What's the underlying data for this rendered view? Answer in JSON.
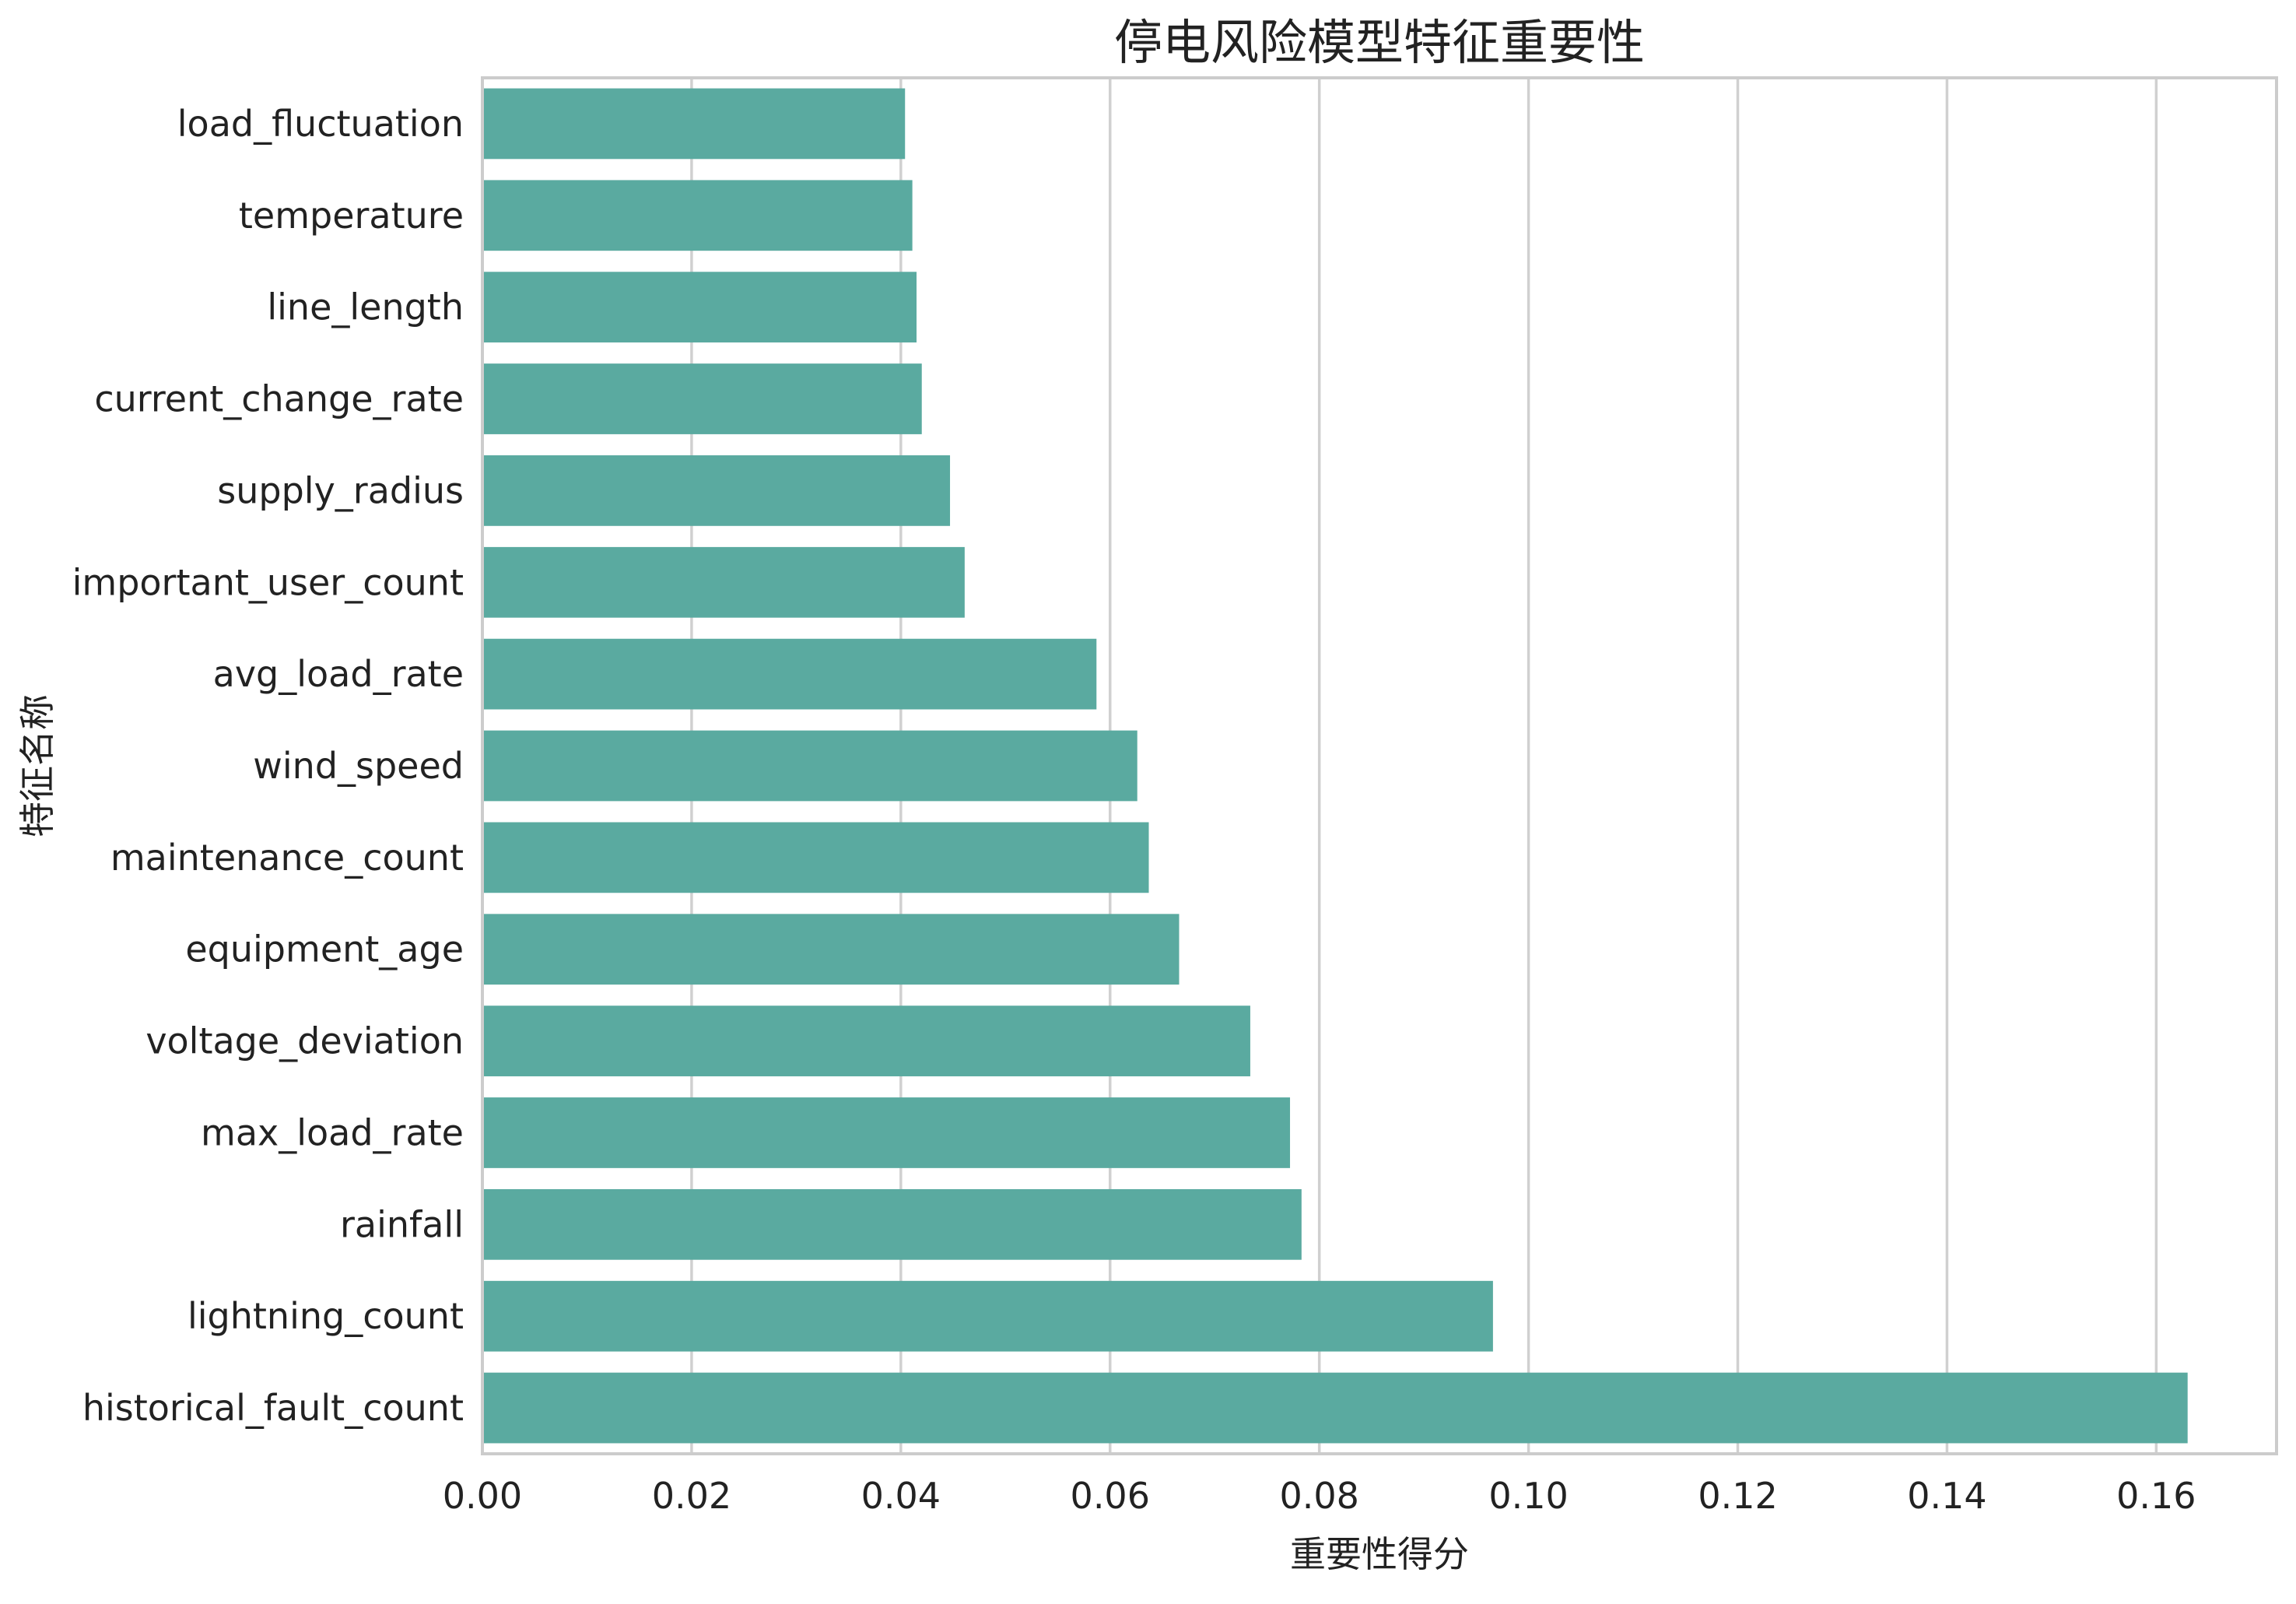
{
  "chart_data": {
    "type": "bar",
    "orientation": "horizontal",
    "title": "停电风险模型特征重要性",
    "xlabel": "重要性得分",
    "ylabel": "特征名称",
    "categories": [
      "load_fluctuation",
      "temperature",
      "line_length",
      "current_change_rate",
      "supply_radius",
      "important_user_count",
      "avg_load_rate",
      "wind_speed",
      "maintenance_count",
      "equipment_age",
      "voltage_deviation",
      "max_load_rate",
      "rainfall",
      "lightning_count",
      "historical_fault_count"
    ],
    "values": [
      0.0404,
      0.0411,
      0.0415,
      0.042,
      0.0447,
      0.0461,
      0.0587,
      0.0626,
      0.0637,
      0.0666,
      0.0734,
      0.0772,
      0.0783,
      0.0966,
      0.163
    ],
    "xlim": [
      0,
      0.1715
    ],
    "xticks": [
      "0.00",
      "0.02",
      "0.04",
      "0.06",
      "0.08",
      "0.10",
      "0.12",
      "0.14",
      "0.16"
    ],
    "grid": "vertical",
    "bar_color": "#5aaaa0",
    "grid_color": "#d0d0d0",
    "frame_color": "#cccccc"
  }
}
